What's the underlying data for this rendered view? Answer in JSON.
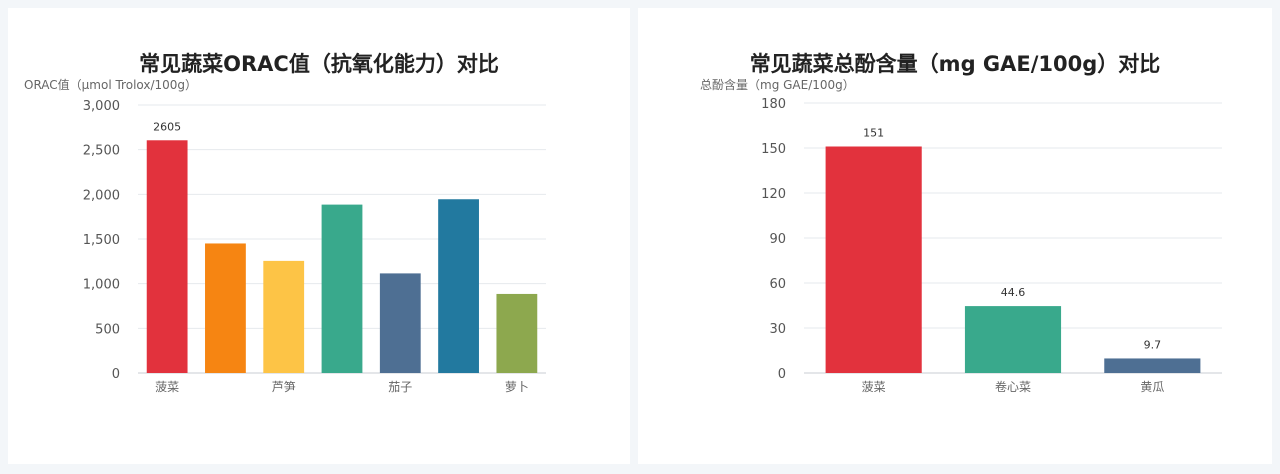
{
  "chart_data": [
    {
      "type": "bar",
      "title": "常见蔬菜ORAC值（抗氧化能力）对比",
      "ylabel": "ORAC值（μmol Trolox/100g）",
      "xlabel": "",
      "ylim": [
        0,
        3000
      ],
      "yticks": [
        0,
        500,
        1000,
        1500,
        2000,
        2500,
        3000
      ],
      "ytick_labels": [
        "0",
        "500",
        "1,000",
        "1,500",
        "2,000",
        "2,500",
        "3,000"
      ],
      "categories": [
        "菠菜",
        "",
        "芦笋",
        "",
        "茄子",
        "",
        "萝卜"
      ],
      "values": [
        2605,
        1450,
        1255,
        1885,
        1115,
        1945,
        885
      ],
      "value_labels": [
        "2605",
        "",
        "",
        "",
        "",
        "",
        ""
      ],
      "colors": [
        "#e2323d",
        "#f68512",
        "#fdc446",
        "#39a98c",
        "#4e6f93",
        "#22799f",
        "#8da84e"
      ],
      "grid": true
    },
    {
      "type": "bar",
      "title": "常见蔬菜总酚含量（mg GAE/100g）对比",
      "ylabel": "总酚含量（mg GAE/100g）",
      "xlabel": "",
      "ylim": [
        0,
        180
      ],
      "yticks": [
        0,
        30,
        60,
        90,
        120,
        150,
        180
      ],
      "ytick_labels": [
        "0",
        "30",
        "60",
        "90",
        "120",
        "150",
        "180"
      ],
      "categories": [
        "菠菜",
        "卷心菜",
        "黄瓜"
      ],
      "values": [
        151,
        44.6,
        9.7
      ],
      "value_labels": [
        "151",
        "44.6",
        "9.7"
      ],
      "colors": [
        "#e2323d",
        "#39a98c",
        "#4e6f93"
      ],
      "grid": true
    }
  ]
}
